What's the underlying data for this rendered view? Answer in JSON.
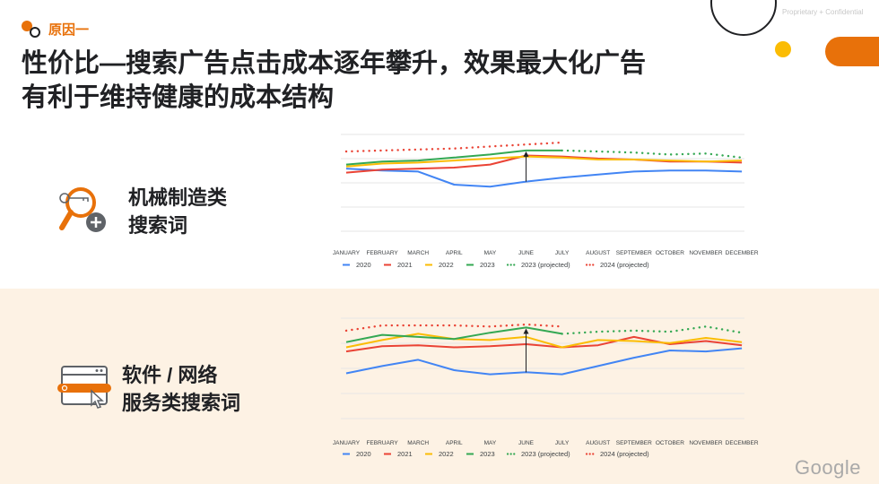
{
  "header": {
    "tag": "原因一",
    "title_line1": "性价比—搜索广告点击成本逐年攀升，效果最大化广告",
    "title_line2": "有利于维持健康的成本结构",
    "confidential": "Proprietary + Confidential"
  },
  "segments": [
    {
      "label_line1": "机械制造类",
      "label_line2": "搜索词",
      "icon": "magnifier-key-icon"
    },
    {
      "label_line1": "软件 / 网络",
      "label_line2": "服务类搜索词",
      "icon": "browser-search-cursor-icon"
    }
  ],
  "footer": {
    "logo": "Google"
  },
  "colors": {
    "accent": "#e8710a",
    "yellow": "#fbbc04",
    "blue": "#4285f4",
    "red": "#ea4335",
    "green": "#34a853",
    "band": "#fdf2e4"
  },
  "chart_data": [
    {
      "type": "line",
      "title": "",
      "xlabel": "",
      "ylabel": "",
      "ylim": [
        0,
        100
      ],
      "grid": true,
      "legend": "bottom",
      "categories": [
        "JANUARY",
        "FEBRUARY",
        "MARCH",
        "APRIL",
        "MAY",
        "JUNE",
        "JULY",
        "AUGUST",
        "SEPTEMBER",
        "OCTOBER",
        "NOVEMBER",
        "DECEMBER"
      ],
      "series": [
        {
          "name": "2020",
          "color": "#4285f4",
          "style": "solid",
          "values": [
            66,
            64,
            63,
            50,
            48,
            53,
            57,
            60,
            63,
            64,
            64,
            63
          ]
        },
        {
          "name": "2021",
          "color": "#ea4335",
          "style": "solid",
          "values": [
            62,
            65,
            66,
            67,
            70,
            79,
            78,
            76,
            75,
            73,
            73,
            72
          ]
        },
        {
          "name": "2022",
          "color": "#fbbc04",
          "style": "solid",
          "values": [
            68,
            71,
            72,
            74,
            76,
            78,
            77,
            75,
            75,
            74,
            73,
            74
          ]
        },
        {
          "name": "2023",
          "color": "#34a853",
          "style": "solid",
          "values": [
            70,
            73,
            74,
            77,
            80,
            84,
            84,
            null,
            null,
            null,
            null,
            null
          ]
        },
        {
          "name": "2023 (projected)",
          "color": "#34a853",
          "style": "dotted",
          "values": [
            null,
            null,
            null,
            null,
            null,
            null,
            84,
            83,
            82,
            80,
            81,
            77
          ]
        },
        {
          "name": "2024 (projected)",
          "color": "#ea4335",
          "style": "dotted",
          "values": [
            83,
            84,
            85,
            86,
            88,
            90,
            92,
            null,
            null,
            null,
            null,
            null
          ]
        }
      ]
    },
    {
      "type": "line",
      "title": "",
      "xlabel": "",
      "ylabel": "",
      "ylim": [
        0,
        100
      ],
      "grid": true,
      "legend": "bottom",
      "categories": [
        "JANUARY",
        "FEBRUARY",
        "MARCH",
        "APRIL",
        "MAY",
        "JUNE",
        "JULY",
        "AUGUST",
        "SEPTEMBER",
        "OCTOBER",
        "NOVEMBER",
        "DECEMBER"
      ],
      "series": [
        {
          "name": "2020",
          "color": "#4285f4",
          "style": "solid",
          "values": [
            47,
            54,
            60,
            50,
            46,
            48,
            46,
            54,
            62,
            69,
            68,
            71
          ]
        },
        {
          "name": "2021",
          "color": "#ea4335",
          "style": "solid",
          "values": [
            68,
            73,
            74,
            72,
            73,
            75,
            72,
            74,
            82,
            75,
            78,
            74
          ]
        },
        {
          "name": "2022",
          "color": "#fbbc04",
          "style": "solid",
          "values": [
            72,
            79,
            85,
            80,
            79,
            82,
            72,
            79,
            78,
            76,
            81,
            77
          ]
        },
        {
          "name": "2023",
          "color": "#34a853",
          "style": "solid",
          "values": [
            77,
            84,
            82,
            80,
            86,
            91,
            85,
            null,
            null,
            null,
            null,
            null
          ]
        },
        {
          "name": "2023 (projected)",
          "color": "#34a853",
          "style": "dotted",
          "values": [
            null,
            null,
            null,
            null,
            null,
            null,
            85,
            87,
            88,
            87,
            92,
            86
          ]
        },
        {
          "name": "2024 (projected)",
          "color": "#ea4335",
          "style": "dotted",
          "values": [
            88,
            93,
            93,
            93,
            92,
            94,
            92,
            null,
            null,
            null,
            null,
            null
          ]
        }
      ]
    }
  ]
}
